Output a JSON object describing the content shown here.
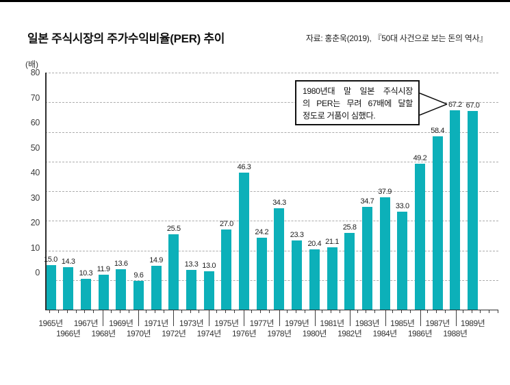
{
  "header": {
    "title": "일본 주식시장의 주가수익비율(PER) 추이",
    "source": "자료: 홍춘욱(2019), 『50대 사건으로 보는 돈의 역사』"
  },
  "chart_data": {
    "type": "bar",
    "title": "일본 주식시장의 주가수익비율(PER) 추이",
    "unit_label": "(배)",
    "xlabel": "",
    "ylabel": "PER (배)",
    "categories": [
      "1965년",
      "1966년",
      "1967년",
      "1968년",
      "1969년",
      "1970년",
      "1971년",
      "1972년",
      "1973년",
      "1974년",
      "1975년",
      "1976년",
      "1977년",
      "1978년",
      "1979년",
      "1980년",
      "1981년",
      "1982년",
      "1983년",
      "1984년",
      "1985년",
      "1986년",
      "1987년",
      "1988년",
      "1989년"
    ],
    "values": [
      15.0,
      14.3,
      10.3,
      11.9,
      13.6,
      9.6,
      14.9,
      25.5,
      13.3,
      13.0,
      27.0,
      46.3,
      24.2,
      34.3,
      23.3,
      20.4,
      21.1,
      25.8,
      34.7,
      37.9,
      33.0,
      49.2,
      58.4,
      67.2,
      67.0
    ],
    "value_labels": [
      "15.0",
      "14.3",
      "10.3",
      "11.9",
      "13.6",
      "9.6",
      "14.9",
      "25.5",
      "13.3",
      "13.0",
      "27.0",
      "46.3",
      "24.2",
      "34.3",
      "23.3",
      "20.4",
      "21.1",
      "25.8",
      "34.7",
      "37.9",
      "33.0",
      "49.2",
      "58.4",
      "67.2",
      "67.0"
    ],
    "ylim": [
      0,
      80
    ],
    "yticks": [
      0,
      10,
      20,
      30,
      40,
      50,
      60,
      70,
      80
    ],
    "grid": "horizontal-dashed",
    "legend": "none",
    "bar_color": "#0cb0b9",
    "annotation": {
      "lines": [
        "1980년대 말 일본 주식시장",
        "의 PER는 무려 67배에 달할",
        "정도로 거품이 심했다."
      ],
      "points_to": "1988년 (67.2)"
    }
  }
}
